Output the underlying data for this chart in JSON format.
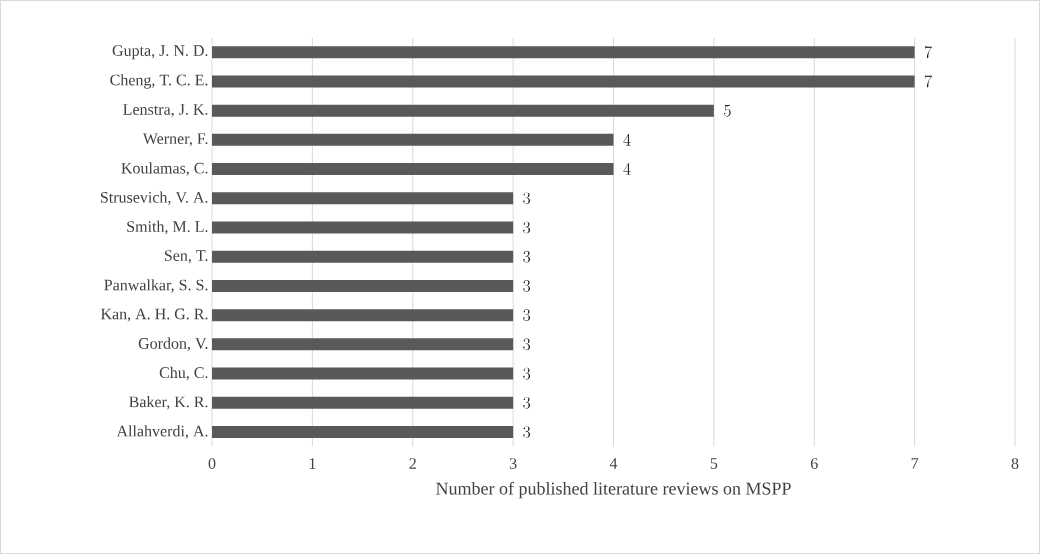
{
  "chart_data": {
    "type": "bar",
    "orientation": "horizontal",
    "xlabel": "Number of published literature reviews on MSPP",
    "categories": [
      "Gupta, J. N. D.",
      "Cheng, T. C. E.",
      "Lenstra, J. K.",
      "Werner, F.",
      "Koulamas, C.",
      "Strusevich, V. A.",
      "Smith, M. L.",
      "Sen, T.",
      "Panwalkar, S. S.",
      "Kan, A. H. G. R.",
      "Gordon, V.",
      "Chu, C.",
      "Baker, K. R.",
      "Allahverdi, A."
    ],
    "values": [
      7,
      7,
      5,
      4,
      4,
      3,
      3,
      3,
      3,
      3,
      3,
      3,
      3,
      3
    ],
    "color": "#595959",
    "xlim": [
      0,
      8
    ],
    "xticks": [
      0,
      1,
      2,
      3,
      4,
      5,
      6,
      7,
      8
    ],
    "grid": "x",
    "data_labels": true
  }
}
